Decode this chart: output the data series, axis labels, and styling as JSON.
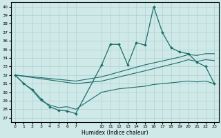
{
  "xlabel": "Humidex (Indice chaleur)",
  "background_color": "#cfe8e8",
  "grid_color": "#b0d0d0",
  "line_color": "#1a6e6a",
  "xlim": [
    -0.5,
    23.5
  ],
  "ylim": [
    26.5,
    40.5
  ],
  "yticks": [
    27,
    28,
    29,
    30,
    31,
    32,
    33,
    34,
    35,
    36,
    37,
    38,
    39,
    40
  ],
  "xtick_positions": [
    0,
    1,
    2,
    3,
    4,
    5,
    6,
    7,
    10,
    11,
    12,
    13,
    14,
    15,
    16,
    17,
    18,
    19,
    20,
    21,
    22,
    23
  ],
  "xtick_labels": [
    "0",
    "1",
    "2",
    "3",
    "4",
    "5",
    "6",
    "7",
    "10",
    "11",
    "12",
    "13",
    "14",
    "15",
    "16",
    "17",
    "18",
    "19",
    "20",
    "21",
    "22",
    "23"
  ],
  "series_main_x": [
    0,
    1,
    2,
    3,
    4,
    5,
    6,
    7,
    10,
    11,
    12,
    13,
    14,
    15,
    16,
    17,
    18,
    19,
    20,
    21,
    22,
    23
  ],
  "series_main_y": [
    32,
    31.0,
    30.3,
    29.2,
    28.3,
    27.9,
    27.8,
    27.5,
    33.2,
    35.6,
    35.6,
    33.2,
    35.8,
    35.5,
    40.0,
    37.0,
    35.2,
    34.7,
    34.5,
    33.5,
    33.0,
    31.0
  ],
  "series_upper_x": [
    0,
    7,
    10,
    15,
    19,
    20,
    21,
    22,
    23
  ],
  "series_upper_y": [
    32,
    31.3,
    31.8,
    33.2,
    34.1,
    34.4,
    34.3,
    34.5,
    34.5
  ],
  "series_mid_x": [
    0,
    7,
    10,
    15,
    19,
    20,
    21,
    22,
    23
  ],
  "series_mid_y": [
    32,
    31.0,
    31.3,
    32.5,
    33.5,
    33.8,
    33.6,
    33.8,
    33.7
  ],
  "series_low_x": [
    0,
    1,
    2,
    3,
    4,
    5,
    6,
    7,
    10,
    11,
    12,
    13,
    14,
    15,
    16,
    17,
    18,
    19,
    20,
    21,
    22,
    23
  ],
  "series_low_y": [
    32,
    31.0,
    30.2,
    29.0,
    28.5,
    28.2,
    28.3,
    28.0,
    30.0,
    30.2,
    30.4,
    30.5,
    30.6,
    30.7,
    30.9,
    31.0,
    31.1,
    31.2,
    31.3,
    31.2,
    31.3,
    31.0
  ]
}
